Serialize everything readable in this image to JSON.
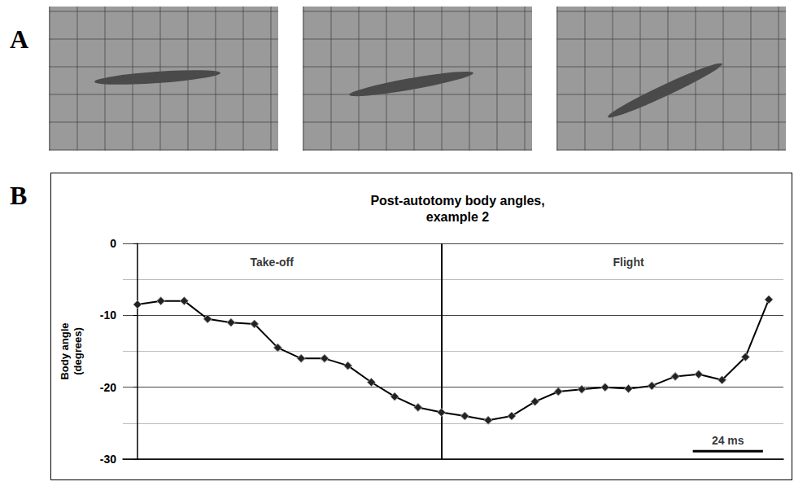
{
  "panel_labels": [
    "A",
    "B"
  ],
  "photos": 3,
  "chart_data": {
    "type": "line",
    "title": "Post-autotomy body angles, example 2",
    "ylabel": "Body angle (degrees)",
    "x": [
      0,
      8,
      16,
      24,
      32,
      40,
      48,
      56,
      64,
      72,
      80,
      88,
      96,
      104,
      112,
      120,
      128,
      136,
      144,
      152,
      160,
      168,
      176,
      184,
      192,
      200,
      208,
      216
    ],
    "values": [
      -8.5,
      -8,
      -8,
      -10.5,
      -11,
      -11.2,
      -14.5,
      -16,
      -16,
      -17,
      -19.3,
      -21.3,
      -22.8,
      -23.5,
      -24,
      -24.6,
      -24,
      -22,
      -20.6,
      -20.3,
      -20,
      -20.2,
      -19.8,
      -18.5,
      -18.2,
      -19,
      -15.8,
      -7.8
    ],
    "color": "#000000",
    "marker": "diamond",
    "xlim": [
      -5,
      221
    ],
    "ylim": [
      -30,
      0
    ],
    "yticks": [
      -30,
      -20,
      -10,
      0
    ],
    "grid": true,
    "tick_labels": "y",
    "annotations": [
      {
        "text": "Take-off",
        "x": 46,
        "y": -2.6
      },
      {
        "text": "Flight",
        "x": 168,
        "y": -2.6
      }
    ],
    "divider_x": 104,
    "scale_bar": {
      "x_start": 190,
      "length": 24,
      "y": -28.9,
      "label": "24 ms"
    }
  }
}
